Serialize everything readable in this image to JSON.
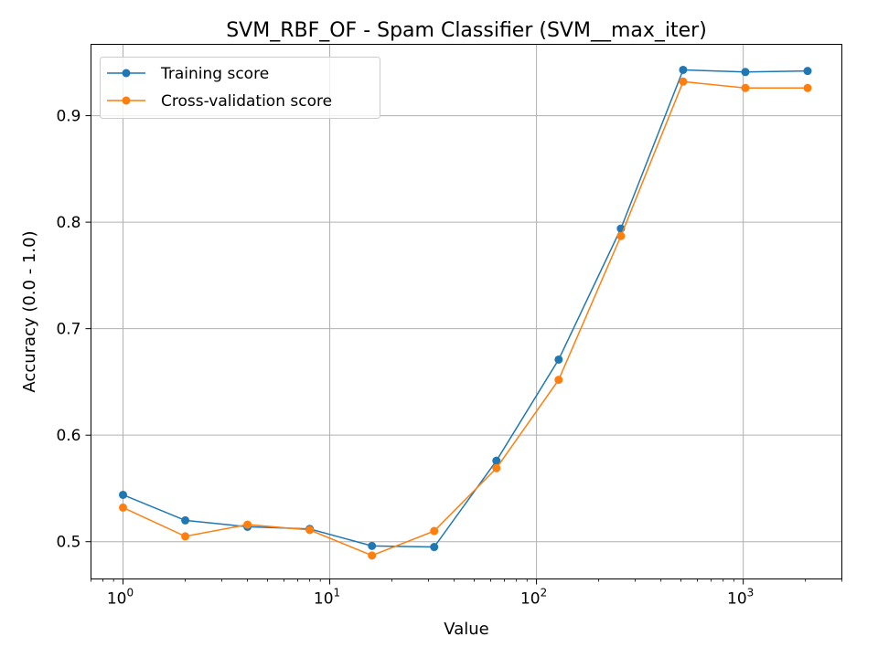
{
  "chart_data": {
    "type": "line",
    "title": "SVM_RBF_OF - Spam Classifier (SVM__max_iter)",
    "xlabel": "Value",
    "ylabel": "Accuracy (0.0 - 1.0)",
    "xscale": "log",
    "xlim": [
      0.7,
      3000
    ],
    "ylim": [
      0.465,
      0.967
    ],
    "grid": true,
    "legend_position": "top-left",
    "x": [
      1,
      2,
      4,
      8,
      16,
      32,
      64,
      128,
      256,
      512,
      1024,
      2048
    ],
    "series": [
      {
        "name": "Training score",
        "color": "#1f77b4",
        "values": [
          0.544,
          0.52,
          0.514,
          0.512,
          0.496,
          0.495,
          0.576,
          0.671,
          0.794,
          0.943,
          0.941,
          0.942
        ]
      },
      {
        "name": "Cross-validation score",
        "color": "#ff7f0e",
        "values": [
          0.532,
          0.505,
          0.516,
          0.511,
          0.487,
          0.51,
          0.569,
          0.652,
          0.787,
          0.932,
          0.926,
          0.926
        ]
      }
    ],
    "x_ticks": [
      {
        "value": 1,
        "base": "10",
        "exp": "0"
      },
      {
        "value": 10,
        "base": "10",
        "exp": "1"
      },
      {
        "value": 100,
        "base": "10",
        "exp": "2"
      },
      {
        "value": 1000,
        "base": "10",
        "exp": "3"
      }
    ],
    "y_ticks": [
      {
        "value": 0.5,
        "label": "0.5"
      },
      {
        "value": 0.6,
        "label": "0.6"
      },
      {
        "value": 0.7,
        "label": "0.7"
      },
      {
        "value": 0.8,
        "label": "0.8"
      },
      {
        "value": 0.9,
        "label": "0.9"
      }
    ]
  }
}
